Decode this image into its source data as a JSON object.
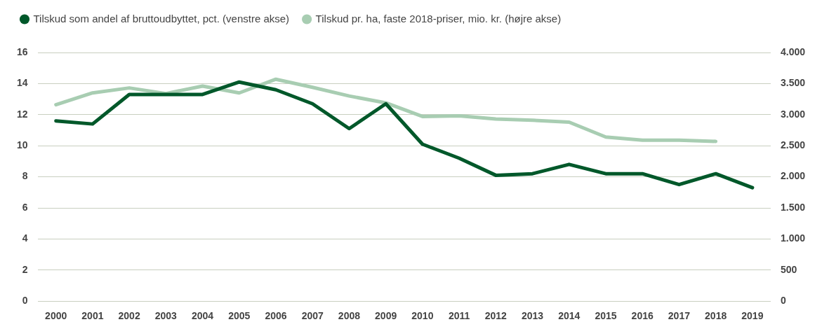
{
  "chart_data": {
    "type": "line",
    "categories": [
      "2000",
      "2001",
      "2002",
      "2003",
      "2004",
      "2005",
      "2006",
      "2007",
      "2008",
      "2009",
      "2010",
      "2011",
      "2012",
      "2013",
      "2014",
      "2015",
      "2016",
      "2017",
      "2018",
      "2019"
    ],
    "series": [
      {
        "name": "Tilskud som andel af bruttoudbyttet, pct. (venstre akse)",
        "color": "#00582a",
        "values": [
          11.6,
          11.4,
          13.3,
          13.3,
          13.3,
          14.1,
          13.6,
          12.7,
          11.1,
          12.7,
          10.1,
          9.2,
          8.1,
          8.2,
          8.8,
          8.2,
          8.2,
          7.5,
          8.2,
          7.3
        ]
      },
      {
        "name": "Tilskud pr. ha, faste 2018-priser, mio. kr. (højre akse)",
        "color": "#a8cdb2",
        "axis": "y2",
        "values": [
          3160,
          3350,
          3430,
          3340,
          3460,
          3350,
          3570,
          3440,
          3300,
          3190,
          2970,
          2980,
          2930,
          2910,
          2880,
          2640,
          2590,
          2590,
          2570,
          null
        ]
      }
    ],
    "ylim": [
      0,
      16
    ],
    "yticks": [
      0,
      2,
      4,
      6,
      8,
      10,
      12,
      14,
      16
    ],
    "y2lim": [
      0,
      4000
    ],
    "y2ticks": [
      {
        "value": 0,
        "label": "0"
      },
      {
        "value": 500,
        "label": "500"
      },
      {
        "value": 1000,
        "label": "1.000"
      },
      {
        "value": 1500,
        "label": "1.500"
      },
      {
        "value": 2000,
        "label": "2.000"
      },
      {
        "value": 2500,
        "label": "2.500"
      },
      {
        "value": 3000,
        "label": "3.000"
      },
      {
        "value": 3500,
        "label": "3.500"
      },
      {
        "value": 4000,
        "label": "4.000"
      }
    ],
    "grid": "y",
    "legend": "top left",
    "marker": "none",
    "line_style": "solid"
  }
}
